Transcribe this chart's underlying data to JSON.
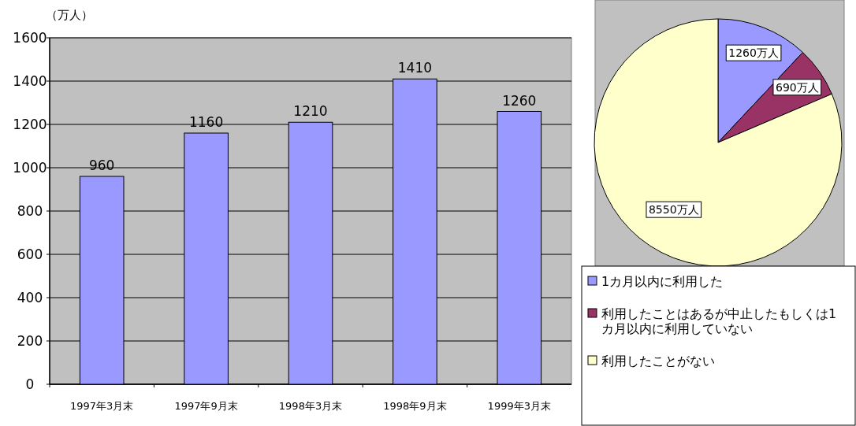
{
  "chart_data": [
    {
      "type": "bar",
      "ylabel": "（万人）",
      "categories": [
        "1997年3月末",
        "1997年9月末",
        "1998年3月末",
        "1998年9月末",
        "1999年3月末"
      ],
      "values": [
        960,
        1160,
        1210,
        1410,
        1260
      ],
      "color": "#9999ff",
      "ylim": [
        0,
        1600
      ],
      "yticks": [
        0,
        200,
        400,
        600,
        800,
        1000,
        1200,
        1400,
        1600
      ],
      "grid": "y",
      "data_labels": true
    },
    {
      "type": "pie",
      "categories": [
        "1カ月以内に利用した",
        "利用したことはあるが中止したもしくは1カ月以内に利用していない",
        "利用したことがない"
      ],
      "values": [
        1260,
        690,
        8550
      ],
      "colors": [
        "#9999ff",
        "#993366",
        "#ffffcc"
      ],
      "value_labels": [
        "1260万人",
        "690万人",
        "8550万人"
      ],
      "legend": "bottom"
    }
  ]
}
